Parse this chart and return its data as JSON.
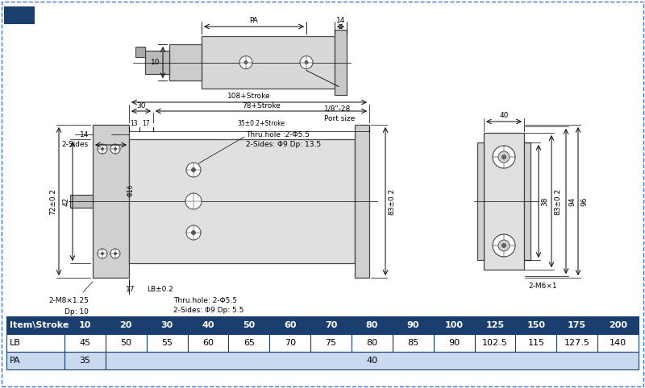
{
  "bg_color": "#ffffff",
  "table": {
    "header_row": [
      "Item\\Stroke",
      "10",
      "20",
      "30",
      "40",
      "50",
      "60",
      "70",
      "80",
      "90",
      "100",
      "125",
      "150",
      "175",
      "200"
    ],
    "lb_row": [
      "LB",
      "45",
      "50",
      "55",
      "60",
      "65",
      "70",
      "75",
      "80",
      "85",
      "90",
      "102.5",
      "115",
      "127.5",
      "140"
    ],
    "pa_row": [
      "PA",
      "35",
      "40"
    ],
    "header_bg": "#1a3f6f",
    "header_fg": "#ffffff",
    "row1_bg": "#ffffff",
    "row2_bg": "#c9d9ef",
    "border_color": "#1a3f6f"
  }
}
